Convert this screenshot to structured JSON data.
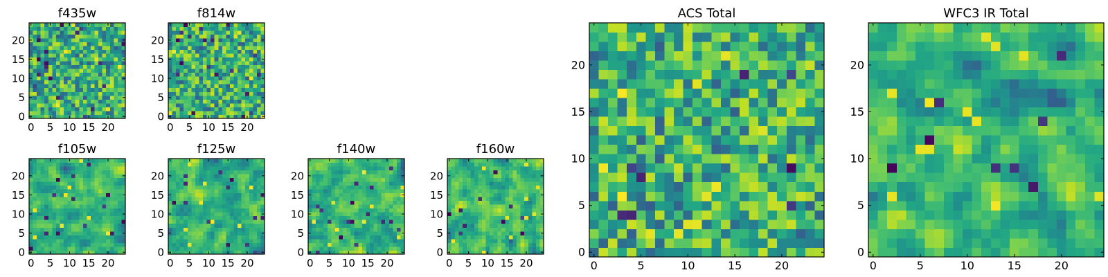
{
  "figure": {
    "background": "#ffffff",
    "text_color": "#000000",
    "frame_color": "#000000"
  },
  "chart_data": [
    {
      "type": "heatmap",
      "title": "f435w",
      "rows": 25,
      "cols": 25,
      "xticks": [
        0,
        5,
        10,
        15,
        20
      ],
      "yticks": [
        0,
        5,
        10,
        15,
        20
      ],
      "origin": "lower",
      "colormap": "viridis",
      "seed": 11,
      "smooth": 0,
      "dark_points": 18,
      "bright_points": 6
    },
    {
      "type": "heatmap",
      "title": "f814w",
      "rows": 25,
      "cols": 25,
      "xticks": [
        0,
        5,
        10,
        15,
        20
      ],
      "yticks": [
        0,
        5,
        10,
        15,
        20
      ],
      "origin": "lower",
      "colormap": "viridis",
      "seed": 23,
      "smooth": 0,
      "dark_points": 20,
      "bright_points": 6
    },
    {
      "type": "heatmap",
      "title": "f105w",
      "rows": 25,
      "cols": 25,
      "xticks": [
        0,
        5,
        10,
        15,
        20
      ],
      "yticks": [
        0,
        5,
        10,
        15,
        20
      ],
      "origin": "lower",
      "colormap": "viridis",
      "seed": 37,
      "smooth": 1,
      "dark_points": 14,
      "bright_points": 8
    },
    {
      "type": "heatmap",
      "title": "f125w",
      "rows": 25,
      "cols": 25,
      "xticks": [
        0,
        5,
        10,
        15,
        20
      ],
      "yticks": [
        0,
        5,
        10,
        15,
        20
      ],
      "origin": "lower",
      "colormap": "viridis",
      "seed": 41,
      "smooth": 1,
      "dark_points": 14,
      "bright_points": 8
    },
    {
      "type": "heatmap",
      "title": "f140w",
      "rows": 25,
      "cols": 25,
      "xticks": [
        0,
        5,
        10,
        15,
        20
      ],
      "yticks": [
        0,
        5,
        10,
        15,
        20
      ],
      "origin": "lower",
      "colormap": "viridis",
      "seed": 53,
      "smooth": 1,
      "dark_points": 16,
      "bright_points": 10
    },
    {
      "type": "heatmap",
      "title": "f160w",
      "rows": 25,
      "cols": 25,
      "xticks": [
        0,
        5,
        10,
        15,
        20
      ],
      "yticks": [
        0,
        5,
        10,
        15,
        20
      ],
      "origin": "lower",
      "colormap": "viridis",
      "seed": 67,
      "smooth": 1,
      "dark_points": 10,
      "bright_points": 10
    },
    {
      "type": "heatmap",
      "title": "ACS Total",
      "rows": 25,
      "cols": 25,
      "xticks": [
        0,
        5,
        10,
        15,
        20
      ],
      "yticks": [
        0,
        5,
        10,
        15,
        20
      ],
      "origin": "lower",
      "colormap": "viridis",
      "seed": 79,
      "smooth": 0,
      "dark_points": 8,
      "bright_points": 12
    },
    {
      "type": "heatmap",
      "title": "WFC3 IR Total",
      "rows": 25,
      "cols": 25,
      "xticks": [
        0,
        5,
        10,
        15,
        20
      ],
      "yticks": [
        0,
        5,
        10,
        15,
        20
      ],
      "origin": "lower",
      "colormap": "viridis",
      "seed": 97,
      "smooth": 1,
      "dark_points": 8,
      "bright_points": 12
    }
  ]
}
